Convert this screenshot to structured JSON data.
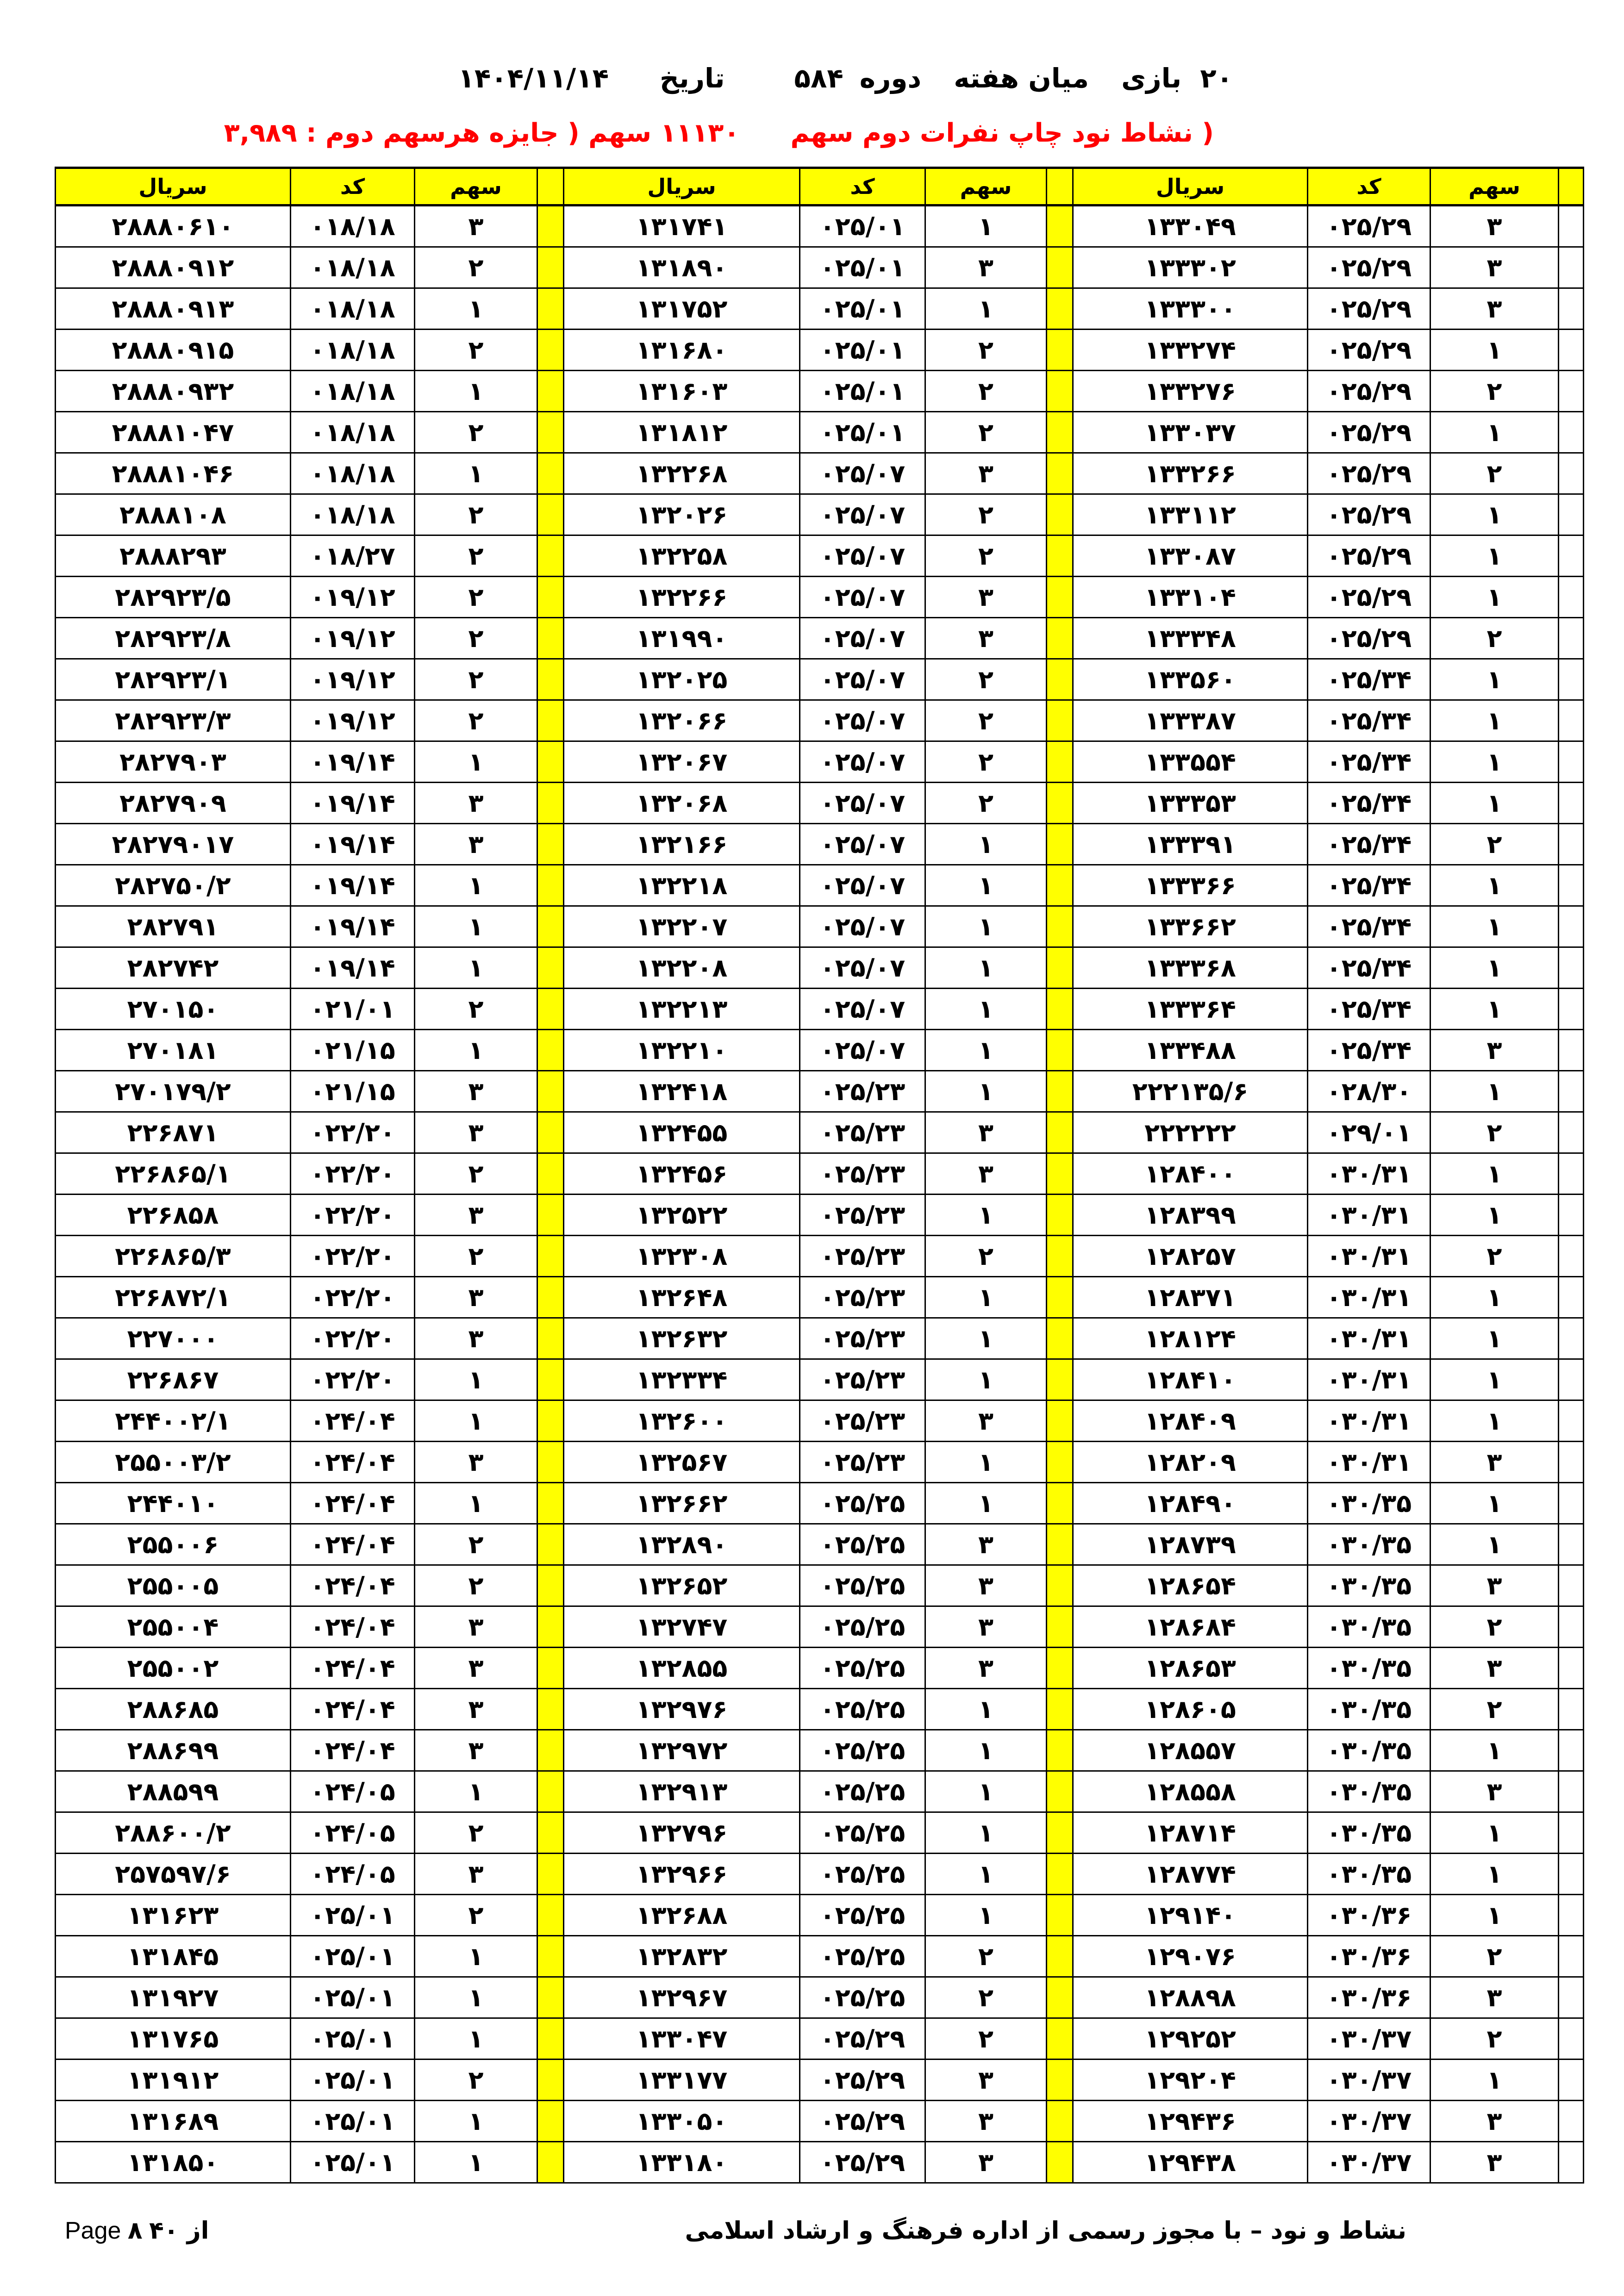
{
  "header": {
    "game_no": "۲۰",
    "game_label": "بازی",
    "game_type": "میان هفته",
    "period_label": "دوره",
    "period_value": "۵۸۴",
    "date_label": "تاریخ",
    "date_value": "۱۴۰۴/۱۱/۱۴"
  },
  "subheader": {
    "title": "( نشاط نود  چاپ نفرات دوم سهم",
    "summary": "۱۱۱۳۰ سهم ( جایزه هرسهم دوم : ۳,۹۸۹"
  },
  "colors": {
    "header_bg": "#ffff00",
    "subheader_text": "#ff0000"
  },
  "table": {
    "columns": [
      "سریال",
      "کد",
      "سهم",
      "سریال",
      "کد",
      "سهم",
      "سریال",
      "کد",
      "سهم"
    ],
    "rows": [
      [
        "۲۸۸۸۰۶۱۰",
        "۰۱۸/۱۸",
        "۳",
        "۱۳۱۷۴۱",
        "۰۲۵/۰۱",
        "۱",
        "۱۳۳۰۴۹",
        "۰۲۵/۲۹",
        "۳"
      ],
      [
        "۲۸۸۸۰۹۱۲",
        "۰۱۸/۱۸",
        "۲",
        "۱۳۱۸۹۰",
        "۰۲۵/۰۱",
        "۳",
        "۱۳۳۳۰۲",
        "۰۲۵/۲۹",
        "۳"
      ],
      [
        "۲۸۸۸۰۹۱۳",
        "۰۱۸/۱۸",
        "۱",
        "۱۳۱۷۵۲",
        "۰۲۵/۰۱",
        "۱",
        "۱۳۳۳۰۰",
        "۰۲۵/۲۹",
        "۳"
      ],
      [
        "۲۸۸۸۰۹۱۵",
        "۰۱۸/۱۸",
        "۲",
        "۱۳۱۶۸۰",
        "۰۲۵/۰۱",
        "۲",
        "۱۳۳۲۷۴",
        "۰۲۵/۲۹",
        "۱"
      ],
      [
        "۲۸۸۸۰۹۳۲",
        "۰۱۸/۱۸",
        "۱",
        "۱۳۱۶۰۳",
        "۰۲۵/۰۱",
        "۲",
        "۱۳۳۲۷۶",
        "۰۲۵/۲۹",
        "۲"
      ],
      [
        "۲۸۸۸۱۰۴۷",
        "۰۱۸/۱۸",
        "۲",
        "۱۳۱۸۱۲",
        "۰۲۵/۰۱",
        "۲",
        "۱۳۳۰۳۷",
        "۰۲۵/۲۹",
        "۱"
      ],
      [
        "۲۸۸۸۱۰۴۶",
        "۰۱۸/۱۸",
        "۱",
        "۱۳۲۲۶۸",
        "۰۲۵/۰۷",
        "۳",
        "۱۳۳۲۶۶",
        "۰۲۵/۲۹",
        "۲"
      ],
      [
        "۲۸۸۸۱۰۸",
        "۰۱۸/۱۸",
        "۲",
        "۱۳۲۰۲۶",
        "۰۲۵/۰۷",
        "۲",
        "۱۳۳۱۱۲",
        "۰۲۵/۲۹",
        "۱"
      ],
      [
        "۲۸۸۸۲۹۳",
        "۰۱۸/۲۷",
        "۲",
        "۱۳۲۲۵۸",
        "۰۲۵/۰۷",
        "۲",
        "۱۳۳۰۸۷",
        "۰۲۵/۲۹",
        "۱"
      ],
      [
        "۲۸۲۹۲۳/۵",
        "۰۱۹/۱۲",
        "۲",
        "۱۳۲۲۶۶",
        "۰۲۵/۰۷",
        "۳",
        "۱۳۳۱۰۴",
        "۰۲۵/۲۹",
        "۱"
      ],
      [
        "۲۸۲۹۲۳/۸",
        "۰۱۹/۱۲",
        "۲",
        "۱۳۱۹۹۰",
        "۰۲۵/۰۷",
        "۳",
        "۱۳۳۳۴۸",
        "۰۲۵/۲۹",
        "۲"
      ],
      [
        "۲۸۲۹۲۳/۱",
        "۰۱۹/۱۲",
        "۲",
        "۱۳۲۰۲۵",
        "۰۲۵/۰۷",
        "۲",
        "۱۳۳۵۶۰",
        "۰۲۵/۳۴",
        "۱"
      ],
      [
        "۲۸۲۹۲۳/۳",
        "۰۱۹/۱۲",
        "۲",
        "۱۳۲۰۶۶",
        "۰۲۵/۰۷",
        "۲",
        "۱۳۳۳۸۷",
        "۰۲۵/۳۴",
        "۱"
      ],
      [
        "۲۸۲۷۹۰۳",
        "۰۱۹/۱۴",
        "۱",
        "۱۳۲۰۶۷",
        "۰۲۵/۰۷",
        "۲",
        "۱۳۳۵۵۴",
        "۰۲۵/۳۴",
        "۱"
      ],
      [
        "۲۸۲۷۹۰۹",
        "۰۱۹/۱۴",
        "۳",
        "۱۳۲۰۶۸",
        "۰۲۵/۰۷",
        "۲",
        "۱۳۳۳۵۳",
        "۰۲۵/۳۴",
        "۱"
      ],
      [
        "۲۸۲۷۹۰۱۷",
        "۰۱۹/۱۴",
        "۳",
        "۱۳۲۱۶۶",
        "۰۲۵/۰۷",
        "۱",
        "۱۳۳۳۹۱",
        "۰۲۵/۳۴",
        "۲"
      ],
      [
        "۲۸۲۷۵۰/۲",
        "۰۱۹/۱۴",
        "۱",
        "۱۳۲۲۱۸",
        "۰۲۵/۰۷",
        "۱",
        "۱۳۳۳۶۶",
        "۰۲۵/۳۴",
        "۱"
      ],
      [
        "۲۸۲۷۹۱",
        "۰۱۹/۱۴",
        "۱",
        "۱۳۲۲۰۷",
        "۰۲۵/۰۷",
        "۱",
        "۱۳۳۶۶۲",
        "۰۲۵/۳۴",
        "۱"
      ],
      [
        "۲۸۲۷۴۲",
        "۰۱۹/۱۴",
        "۱",
        "۱۳۲۲۰۸",
        "۰۲۵/۰۷",
        "۱",
        "۱۳۳۳۶۸",
        "۰۲۵/۳۴",
        "۱"
      ],
      [
        "۲۷۰۱۵۰",
        "۰۲۱/۰۱",
        "۲",
        "۱۳۲۲۱۳",
        "۰۲۵/۰۷",
        "۱",
        "۱۳۳۳۶۴",
        "۰۲۵/۳۴",
        "۱"
      ],
      [
        "۲۷۰۱۸۱",
        "۰۲۱/۱۵",
        "۱",
        "۱۳۲۲۱۰",
        "۰۲۵/۰۷",
        "۱",
        "۱۳۳۴۸۸",
        "۰۲۵/۳۴",
        "۳"
      ],
      [
        "۲۷۰۱۷۹/۲",
        "۰۲۱/۱۵",
        "۳",
        "۱۳۲۴۱۸",
        "۰۲۵/۲۳",
        "۱",
        "۲۲۲۱۳۵/۶",
        "۰۲۸/۳۰",
        "۱"
      ],
      [
        "۲۲۶۸۷۱",
        "۰۲۲/۲۰",
        "۳",
        "۱۳۲۴۵۵",
        "۰۲۵/۲۳",
        "۳",
        "۲۲۲۲۲۲",
        "۰۲۹/۰۱",
        "۲"
      ],
      [
        "۲۲۶۸۶۵/۱",
        "۰۲۲/۲۰",
        "۲",
        "۱۳۲۴۵۶",
        "۰۲۵/۲۳",
        "۳",
        "۱۲۸۴۰۰",
        "۰۳۰/۳۱",
        "۱"
      ],
      [
        "۲۲۶۸۵۸",
        "۰۲۲/۲۰",
        "۳",
        "۱۳۲۵۲۲",
        "۰۲۵/۲۳",
        "۱",
        "۱۲۸۳۹۹",
        "۰۳۰/۳۱",
        "۱"
      ],
      [
        "۲۲۶۸۶۵/۳",
        "۰۲۲/۲۰",
        "۲",
        "۱۳۲۳۰۸",
        "۰۲۵/۲۳",
        "۲",
        "۱۲۸۲۵۷",
        "۰۳۰/۳۱",
        "۲"
      ],
      [
        "۲۲۶۸۷۲/۱",
        "۰۲۲/۲۰",
        "۳",
        "۱۳۲۶۴۸",
        "۰۲۵/۲۳",
        "۱",
        "۱۲۸۳۷۱",
        "۰۳۰/۳۱",
        "۱"
      ],
      [
        "۲۲۷۰۰۰",
        "۰۲۲/۲۰",
        "۳",
        "۱۳۲۶۳۲",
        "۰۲۵/۲۳",
        "۱",
        "۱۲۸۱۲۴",
        "۰۳۰/۳۱",
        "۱"
      ],
      [
        "۲۲۶۸۶۷",
        "۰۲۲/۲۰",
        "۱",
        "۱۳۲۳۳۴",
        "۰۲۵/۲۳",
        "۱",
        "۱۲۸۴۱۰",
        "۰۳۰/۳۱",
        "۱"
      ],
      [
        "۲۴۴۰۰۲/۱",
        "۰۲۴/۰۴",
        "۱",
        "۱۳۲۶۰۰",
        "۰۲۵/۲۳",
        "۳",
        "۱۲۸۴۰۹",
        "۰۳۰/۳۱",
        "۱"
      ],
      [
        "۲۵۵۰۰۳/۲",
        "۰۲۴/۰۴",
        "۳",
        "۱۳۲۵۶۷",
        "۰۲۵/۲۳",
        "۱",
        "۱۲۸۲۰۹",
        "۰۳۰/۳۱",
        "۳"
      ],
      [
        "۲۴۴۰۱۰",
        "۰۲۴/۰۴",
        "۱",
        "۱۳۲۶۶۲",
        "۰۲۵/۲۵",
        "۱",
        "۱۲۸۴۹۰",
        "۰۳۰/۳۵",
        "۱"
      ],
      [
        "۲۵۵۰۰۶",
        "۰۲۴/۰۴",
        "۲",
        "۱۳۲۸۹۰",
        "۰۲۵/۲۵",
        "۳",
        "۱۲۸۷۳۹",
        "۰۳۰/۳۵",
        "۱"
      ],
      [
        "۲۵۵۰۰۵",
        "۰۲۴/۰۴",
        "۲",
        "۱۳۲۶۵۲",
        "۰۲۵/۲۵",
        "۳",
        "۱۲۸۶۵۴",
        "۰۳۰/۳۵",
        "۳"
      ],
      [
        "۲۵۵۰۰۴",
        "۰۲۴/۰۴",
        "۳",
        "۱۳۲۷۴۷",
        "۰۲۵/۲۵",
        "۳",
        "۱۲۸۶۸۴",
        "۰۳۰/۳۵",
        "۲"
      ],
      [
        "۲۵۵۰۰۲",
        "۰۲۴/۰۴",
        "۳",
        "۱۳۲۸۵۵",
        "۰۲۵/۲۵",
        "۳",
        "۱۲۸۶۵۳",
        "۰۳۰/۳۵",
        "۳"
      ],
      [
        "۲۸۸۶۸۵",
        "۰۲۴/۰۴",
        "۳",
        "۱۳۲۹۷۶",
        "۰۲۵/۲۵",
        "۱",
        "۱۲۸۶۰۵",
        "۰۳۰/۳۵",
        "۲"
      ],
      [
        "۲۸۸۶۹۹",
        "۰۲۴/۰۴",
        "۳",
        "۱۳۲۹۷۲",
        "۰۲۵/۲۵",
        "۱",
        "۱۲۸۵۵۷",
        "۰۳۰/۳۵",
        "۱"
      ],
      [
        "۲۸۸۵۹۹",
        "۰۲۴/۰۵",
        "۱",
        "۱۳۲۹۱۳",
        "۰۲۵/۲۵",
        "۱",
        "۱۲۸۵۵۸",
        "۰۳۰/۳۵",
        "۳"
      ],
      [
        "۲۸۸۶۰۰/۲",
        "۰۲۴/۰۵",
        "۲",
        "۱۳۲۷۹۶",
        "۰۲۵/۲۵",
        "۱",
        "۱۲۸۷۱۴",
        "۰۳۰/۳۵",
        "۱"
      ],
      [
        "۲۵۷۵۹۷/۶",
        "۰۲۴/۰۵",
        "۳",
        "۱۳۲۹۶۶",
        "۰۲۵/۲۵",
        "۱",
        "۱۲۸۷۷۴",
        "۰۳۰/۳۵",
        "۱"
      ],
      [
        "۱۳۱۶۲۳",
        "۰۲۵/۰۱",
        "۲",
        "۱۳۲۶۸۸",
        "۰۲۵/۲۵",
        "۱",
        "۱۲۹۱۴۰",
        "۰۳۰/۳۶",
        "۱"
      ],
      [
        "۱۳۱۸۴۵",
        "۰۲۵/۰۱",
        "۱",
        "۱۳۲۸۳۲",
        "۰۲۵/۲۵",
        "۲",
        "۱۲۹۰۷۶",
        "۰۳۰/۳۶",
        "۲"
      ],
      [
        "۱۳۱۹۲۷",
        "۰۲۵/۰۱",
        "۱",
        "۱۳۲۹۶۷",
        "۰۲۵/۲۵",
        "۲",
        "۱۲۸۸۹۸",
        "۰۳۰/۳۶",
        "۳"
      ],
      [
        "۱۳۱۷۶۵",
        "۰۲۵/۰۱",
        "۱",
        "۱۳۳۰۴۷",
        "۰۲۵/۲۹",
        "۲",
        "۱۲۹۲۵۲",
        "۰۳۰/۳۷",
        "۲"
      ],
      [
        "۱۳۱۹۱۲",
        "۰۲۵/۰۱",
        "۲",
        "۱۳۳۱۷۷",
        "۰۲۵/۲۹",
        "۳",
        "۱۲۹۲۰۴",
        "۰۳۰/۳۷",
        "۱"
      ],
      [
        "۱۳۱۶۸۹",
        "۰۲۵/۰۱",
        "۱",
        "۱۳۳۰۵۰",
        "۰۲۵/۲۹",
        "۳",
        "۱۲۹۴۳۶",
        "۰۳۰/۳۷",
        "۳"
      ],
      [
        "۱۳۱۸۵۰",
        "۰۲۵/۰۱",
        "۱",
        "۱۳۳۱۸۰",
        "۰۲۵/۲۹",
        "۳",
        "۱۲۹۴۳۸",
        "۰۳۰/۳۷",
        "۳"
      ]
    ]
  },
  "footer": {
    "publisher": "نشاط و نود – با مجوز رسمی از اداره فرهنگ و ارشاد اسلامی",
    "page_label": "Page",
    "page_no": "۸",
    "page_of": "از ۴۰"
  }
}
